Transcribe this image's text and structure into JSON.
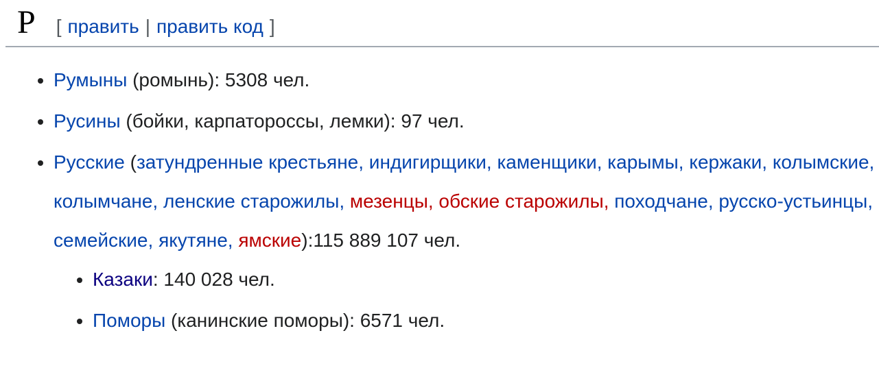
{
  "colors": {
    "background": "#ffffff",
    "body_text": "#202122",
    "heading_text": "#000000",
    "heading_border": "#a2a9b1",
    "edit_brackets": "#54595d",
    "link": "#0645ad",
    "visited_link": "#0b0080",
    "red_link": "#ba0000"
  },
  "heading": {
    "letter": "Р",
    "edit_section": {
      "open_bracket": "[",
      "edit_label": "править",
      "divider": "|",
      "edit_source_label": "править код",
      "close_bracket": "]"
    }
  },
  "list": {
    "items": [
      {
        "id": "rumyny",
        "segments": [
          {
            "type": "link",
            "name": "rumyny",
            "text": "Румыны"
          },
          {
            "type": "plain",
            "text": " (ромынь): 5308 чел."
          }
        ]
      },
      {
        "id": "rusiny",
        "segments": [
          {
            "type": "link",
            "name": "rusiny",
            "text": "Русины"
          },
          {
            "type": "plain",
            "text": " (бойки, карпатороссы, лемки): 97 чел."
          }
        ]
      },
      {
        "id": "russkie",
        "segments": [
          {
            "type": "link",
            "name": "russkie",
            "text": "Русские"
          },
          {
            "type": "plain",
            "text": " ("
          },
          {
            "type": "link",
            "name": "zatundrennye-krestyane",
            "text": "затундренные крестьяне,"
          },
          {
            "type": "plain",
            "text": " "
          },
          {
            "type": "link",
            "name": "indigirshchiki",
            "text": "индигирщики,"
          },
          {
            "type": "plain",
            "text": " "
          },
          {
            "type": "link",
            "name": "kamenshchiki",
            "text": "каменщики,"
          },
          {
            "type": "plain",
            "text": " "
          },
          {
            "type": "link",
            "name": "karymy",
            "text": "карымы,"
          },
          {
            "type": "plain",
            "text": " "
          },
          {
            "type": "link",
            "name": "kerzhaki",
            "text": "кержаки,"
          },
          {
            "type": "plain",
            "text": " "
          },
          {
            "type": "link",
            "name": "kolymskie",
            "text": "колымские,"
          },
          {
            "type": "plain",
            "text": " "
          },
          {
            "type": "link",
            "name": "kolymchane",
            "text": "колымчане,"
          },
          {
            "type": "plain",
            "text": " "
          },
          {
            "type": "link",
            "name": "lenskie-starozhily",
            "text": "ленские старожилы,"
          },
          {
            "type": "plain",
            "text": " "
          },
          {
            "type": "red_link",
            "name": "mezentsy",
            "text": "мезенцы,"
          },
          {
            "type": "plain",
            "text": " "
          },
          {
            "type": "red_link",
            "name": "obskie-starozhily",
            "text": "обские старожилы,"
          },
          {
            "type": "plain",
            "text": " "
          },
          {
            "type": "link",
            "name": "pokhodchane",
            "text": "походчане,"
          },
          {
            "type": "plain",
            "text": " "
          },
          {
            "type": "link",
            "name": "russko-ustintsy",
            "text": "русско-устьинцы,"
          },
          {
            "type": "plain",
            "text": " "
          },
          {
            "type": "link",
            "name": "semeyskie",
            "text": "семейские,"
          },
          {
            "type": "plain",
            "text": " "
          },
          {
            "type": "link",
            "name": "yakutyane",
            "text": "якутяне,"
          },
          {
            "type": "plain",
            "text": " "
          },
          {
            "type": "red_link",
            "name": "yamskie",
            "text": "ямские"
          },
          {
            "type": "plain",
            "text": "):115 889 107 чел."
          }
        ],
        "children": [
          {
            "id": "kazaki",
            "segments": [
              {
                "type": "visited_link",
                "name": "kazaki",
                "text": "Казаки"
              },
              {
                "type": "plain",
                "text": ": 140 028 чел."
              }
            ]
          },
          {
            "id": "pomory",
            "segments": [
              {
                "type": "link",
                "name": "pomory",
                "text": "Поморы"
              },
              {
                "type": "plain",
                "text": " (канинские поморы): 6571 чел."
              }
            ]
          }
        ]
      }
    ]
  }
}
